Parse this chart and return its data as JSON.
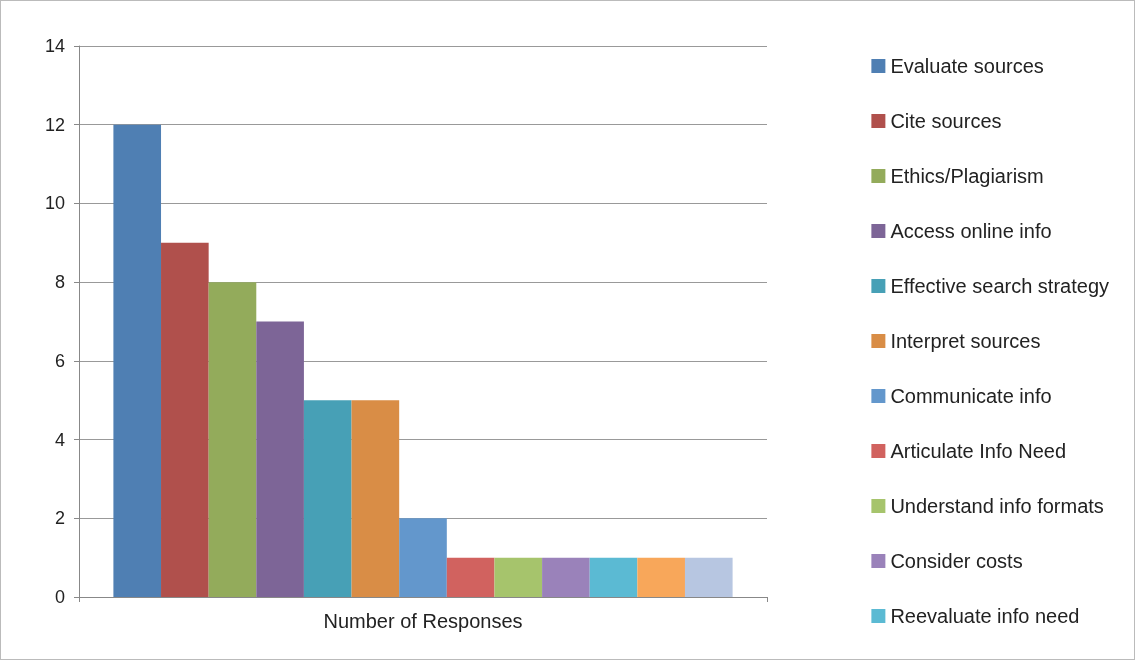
{
  "chart_data": {
    "type": "bar",
    "categories": [
      "Number of Responses"
    ],
    "series": [
      {
        "name": "Evaluate sources",
        "color": "#4f7fb3",
        "values": [
          12
        ]
      },
      {
        "name": "Cite sources",
        "color": "#b0504c",
        "values": [
          9
        ]
      },
      {
        "name": "Ethics/Plagiarism",
        "color": "#93ab5b",
        "values": [
          8
        ]
      },
      {
        "name": "Access online info",
        "color": "#7d6597",
        "values": [
          7
        ]
      },
      {
        "name": "Effective search strategy",
        "color": "#47a0b6",
        "values": [
          5
        ]
      },
      {
        "name": "Interpret sources",
        "color": "#d98d46",
        "values": [
          5
        ]
      },
      {
        "name": "Communicate info",
        "color": "#6397cc",
        "values": [
          2
        ]
      },
      {
        "name": "Articulate Info Need",
        "color": "#d1625f",
        "values": [
          1
        ]
      },
      {
        "name": "Understand info formats",
        "color": "#a6c46c",
        "values": [
          1
        ]
      },
      {
        "name": "Consider costs",
        "color": "#9a82ba",
        "values": [
          1
        ]
      },
      {
        "name": "Reevaluate info need",
        "color": "#5bbad3",
        "values": [
          1
        ]
      },
      {
        "color": "#f8a75a",
        "values": [
          1
        ]
      },
      {
        "color": "#b7c6e1",
        "values": [
          1
        ]
      }
    ],
    "ylim": [
      0,
      14
    ],
    "yticks": [
      0,
      2,
      4,
      6,
      8,
      10,
      12,
      14
    ],
    "grid": "y",
    "legend": "right"
  }
}
